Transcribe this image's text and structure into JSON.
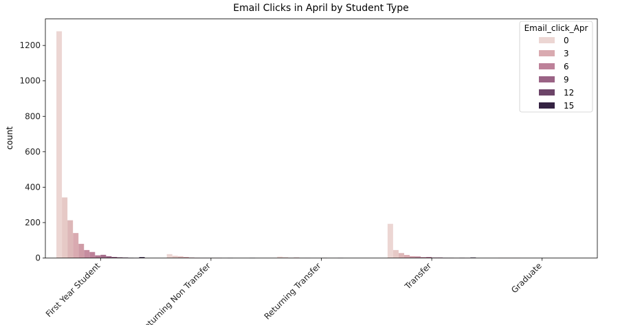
{
  "chart_data": {
    "type": "bar",
    "title": "Email Clicks in April by Student Type",
    "xlabel": "",
    "ylabel": "count",
    "ylim": [
      0,
      1350
    ],
    "yticks": [
      0,
      200,
      400,
      600,
      800,
      1000,
      1200
    ],
    "categories": [
      "First Year Student",
      "Returning Non Transfer",
      "Returning Transfer",
      "Transfer",
      "Graduate"
    ],
    "grid": false,
    "legend": {
      "title": "Email_click_Apr",
      "placement": "top-right",
      "entries": [
        {
          "label": "0",
          "color": "#ecd6d3"
        },
        {
          "label": "3",
          "color": "#d9aab0"
        },
        {
          "label": "6",
          "color": "#bd8199"
        },
        {
          "label": "9",
          "color": "#9a6385"
        },
        {
          "label": "12",
          "color": "#6c4468"
        },
        {
          "label": "15",
          "color": "#342242"
        }
      ]
    },
    "series": [
      {
        "hue": 0,
        "color": "#ecd6d3",
        "values": [
          1280,
          22,
          8,
          193,
          2
        ]
      },
      {
        "hue": 1,
        "color": "#e6c9c6",
        "values": [
          342,
          12,
          4,
          45,
          1
        ]
      },
      {
        "hue": 2,
        "color": "#ddb7b8",
        "values": [
          213,
          9,
          2,
          28,
          1
        ]
      },
      {
        "hue": 3,
        "color": "#d9aab0",
        "values": [
          141,
          6,
          3,
          17,
          1
        ]
      },
      {
        "hue": 4,
        "color": "#cf9ba6",
        "values": [
          80,
          3,
          1,
          10,
          0
        ]
      },
      {
        "hue": 5,
        "color": "#c58d9f",
        "values": [
          45,
          2,
          1,
          9,
          0
        ]
      },
      {
        "hue": 6,
        "color": "#bd8199",
        "values": [
          34,
          1,
          0,
          5,
          0
        ]
      },
      {
        "hue": 7,
        "color": "#b07791",
        "values": [
          15,
          1,
          0,
          6,
          0
        ]
      },
      {
        "hue": 8,
        "color": "#a56d8b",
        "values": [
          18,
          1,
          1,
          3,
          0
        ]
      },
      {
        "hue": 9,
        "color": "#9a6385",
        "values": [
          10,
          1,
          0,
          3,
          0
        ]
      },
      {
        "hue": 10,
        "color": "#8b5a7c",
        "values": [
          6,
          0,
          0,
          2,
          0
        ]
      },
      {
        "hue": 11,
        "color": "#7c4f72",
        "values": [
          4,
          1,
          1,
          2,
          0
        ]
      },
      {
        "hue": 12,
        "color": "#6c4468",
        "values": [
          3,
          0,
          0,
          1,
          0
        ]
      },
      {
        "hue": 13,
        "color": "#5b3a5c",
        "values": [
          2,
          0,
          0,
          2,
          0
        ]
      },
      {
        "hue": 14,
        "color": "#483050",
        "values": [
          1,
          0,
          0,
          1,
          0
        ]
      },
      {
        "hue": 15,
        "color": "#342242",
        "values": [
          5,
          1,
          0,
          3,
          0
        ]
      }
    ]
  }
}
